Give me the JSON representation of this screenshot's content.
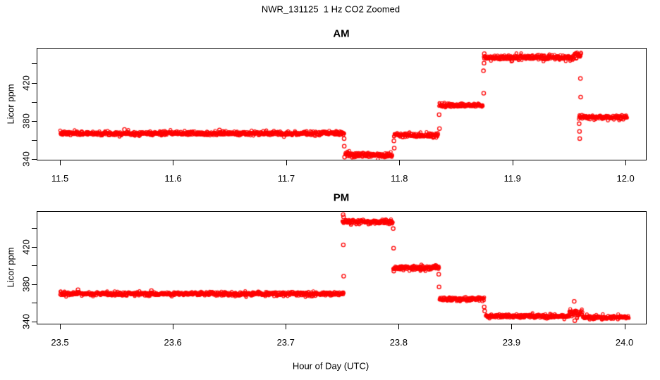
{
  "title": "NWR_131125  1 Hz CO2 Zoomed",
  "xlabel": "Hour of Day (UTC)",
  "ylabel": "Licor ppm",
  "point_color": "#ff0000",
  "axis_color": "#000000",
  "chart_data": [
    {
      "panel": "AM",
      "type": "scatter",
      "marker": "open-circle",
      "sample_rate_hz": 1,
      "xlim": [
        11.48,
        12.018
      ],
      "ylim": [
        339.3,
        455.8
      ],
      "grid": false,
      "xticks": [
        {
          "v": 11.5,
          "t": "11.5"
        },
        {
          "v": 11.6,
          "t": "11.6"
        },
        {
          "v": 11.7,
          "t": "11.7"
        },
        {
          "v": 11.8,
          "t": "11.8"
        },
        {
          "v": 11.9,
          "t": "11.9"
        },
        {
          "v": 12.0,
          "t": "12.0"
        }
      ],
      "yticks": [
        {
          "v": 340,
          "t": "340"
        },
        {
          "v": 360,
          "t": ""
        },
        {
          "v": 380,
          "t": "380"
        },
        {
          "v": 400,
          "t": ""
        },
        {
          "v": 420,
          "t": "420"
        },
        {
          "v": 440,
          "t": ""
        }
      ],
      "segments": [
        {
          "x0": 11.5,
          "x1": 11.7515,
          "y": 367.0,
          "sd": 1.1
        },
        {
          "x0": 11.752,
          "x1": 11.794,
          "y": 344.5,
          "sd": 1.4
        },
        {
          "x0": 11.795,
          "x1": 11.8345,
          "y": 365.0,
          "sd": 1.1
        },
        {
          "x0": 11.835,
          "x1": 11.874,
          "y": 396.5,
          "sd": 1.1
        },
        {
          "x0": 11.8745,
          "x1": 11.9545,
          "y": 446.5,
          "sd": 1.3
        },
        {
          "x0": 11.9545,
          "x1": 11.961,
          "y": 449.5,
          "sd": 1.7
        },
        {
          "x0": 11.9585,
          "x1": 12.0015,
          "y": 384.0,
          "sd": 1.2
        }
      ],
      "outliers": [
        [
          11.557,
          371.0
        ],
        [
          11.641,
          370.5
        ],
        [
          11.7512,
          361.5
        ],
        [
          11.7513,
          353.5
        ],
        [
          11.7516,
          342.0
        ],
        [
          11.7952,
          359.0
        ],
        [
          11.7955,
          351.5
        ],
        [
          11.8352,
          386.5
        ],
        [
          11.8355,
          372.0
        ],
        [
          11.8744,
          432.5
        ],
        [
          11.8746,
          409.0
        ],
        [
          11.8749,
          440.5
        ],
        [
          11.8751,
          450.5
        ],
        [
          11.9601,
          424.5
        ],
        [
          11.9603,
          405.0
        ],
        [
          11.959,
          377.0
        ],
        [
          11.9593,
          369.0
        ],
        [
          11.9595,
          361.5
        ]
      ]
    },
    {
      "panel": "PM",
      "type": "scatter",
      "marker": "open-circle",
      "sample_rate_hz": 1,
      "xlim": [
        23.48,
        24.019
      ],
      "ylim": [
        337.5,
        457.5
      ],
      "grid": false,
      "xticks": [
        {
          "v": 23.5,
          "t": "23.5"
        },
        {
          "v": 23.6,
          "t": "23.6"
        },
        {
          "v": 23.7,
          "t": "23.7"
        },
        {
          "v": 23.8,
          "t": "23.8"
        },
        {
          "v": 23.9,
          "t": "23.9"
        },
        {
          "v": 24.0,
          "t": "24.0"
        }
      ],
      "yticks": [
        {
          "v": 340,
          "t": "340"
        },
        {
          "v": 360,
          "t": ""
        },
        {
          "v": 380,
          "t": "380"
        },
        {
          "v": 400,
          "t": ""
        },
        {
          "v": 420,
          "t": "420"
        },
        {
          "v": 440,
          "t": ""
        }
      ],
      "segments": [
        {
          "x0": 23.5,
          "x1": 23.7515,
          "y": 369.5,
          "sd": 1.1
        },
        {
          "x0": 23.75,
          "x1": 23.795,
          "y": 447.0,
          "sd": 1.3
        },
        {
          "x0": 23.795,
          "x1": 23.836,
          "y": 397.5,
          "sd": 1.2
        },
        {
          "x0": 23.836,
          "x1": 23.876,
          "y": 364.0,
          "sd": 1.1
        },
        {
          "x0": 23.877,
          "x1": 23.951,
          "y": 345.7,
          "sd": 1.1
        },
        {
          "x0": 23.951,
          "x1": 23.963,
          "y": 349.5,
          "sd": 1.9
        },
        {
          "x0": 23.963,
          "x1": 24.004,
          "y": 344.3,
          "sd": 1.2
        }
      ],
      "outliers": [
        [
          23.516,
          374.0
        ],
        [
          23.581,
          373.0
        ],
        [
          23.7508,
          454.5
        ],
        [
          23.7512,
          452.0
        ],
        [
          23.751,
          422.0
        ],
        [
          23.7513,
          388.5
        ],
        [
          23.7952,
          439.5
        ],
        [
          23.7955,
          418.5
        ],
        [
          23.7957,
          394.0
        ],
        [
          23.8355,
          390.5
        ],
        [
          23.8358,
          377.0
        ],
        [
          23.8758,
          355.5
        ],
        [
          23.8762,
          351.0
        ],
        [
          23.9555,
          361.5
        ],
        [
          23.956,
          340.8
        ]
      ]
    }
  ]
}
